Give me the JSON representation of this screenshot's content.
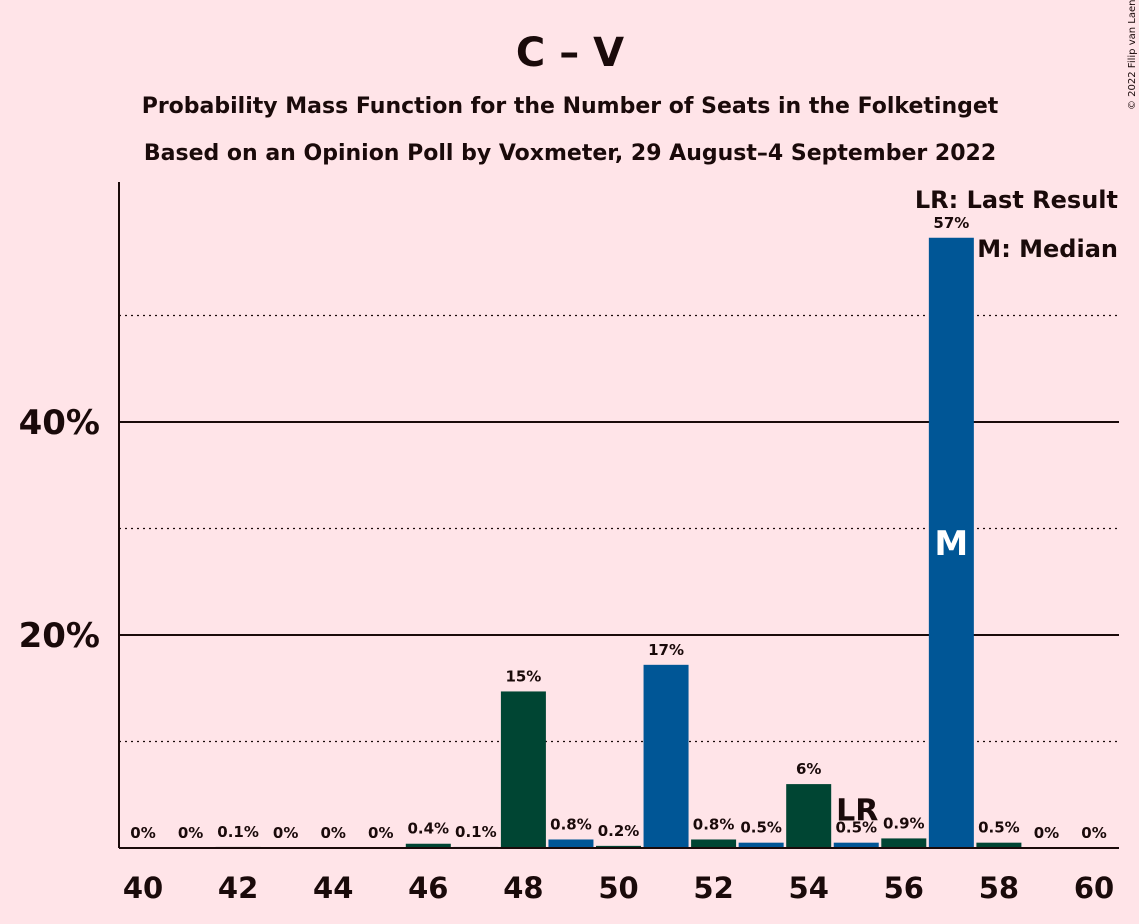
{
  "chart_data": {
    "type": "bar",
    "title": "C – V",
    "subtitle_1": "Probability Mass Function for the Number of Seats in the Folketinget",
    "subtitle_2": "Based on an Opinion Poll by Voxmeter, 29 August–4 September 2022",
    "copyright": "© 2022 Filip van Laenen",
    "x": [
      40,
      41,
      42,
      43,
      44,
      45,
      46,
      47,
      48,
      49,
      50,
      51,
      52,
      53,
      54,
      55,
      56,
      57,
      58,
      59,
      60
    ],
    "values": [
      0,
      0,
      0.1,
      0,
      0,
      0,
      0.4,
      0.1,
      14.7,
      0.8,
      0.2,
      17.2,
      0.8,
      0.5,
      6.0,
      0.5,
      0.9,
      57.3,
      0.5,
      0,
      0
    ],
    "value_labels": [
      "0%",
      "0%",
      "0.1%",
      "0%",
      "0%",
      "0%",
      "0.4%",
      "0.1%",
      "15%",
      "0.8%",
      "0.2%",
      "17%",
      "0.8%",
      "0.5%",
      "6%",
      "0.5%",
      "0.9%",
      "57%",
      "0.5%",
      "0%",
      "0%"
    ],
    "x_tick_labels": [
      "40",
      "42",
      "44",
      "46",
      "48",
      "50",
      "52",
      "54",
      "56",
      "58",
      "60"
    ],
    "x_tick_values": [
      40,
      42,
      44,
      46,
      48,
      50,
      52,
      54,
      56,
      58,
      60
    ],
    "y_tick_labels": [
      "20%",
      "40%"
    ],
    "y_tick_values": [
      20,
      40
    ],
    "y_dotted_values": [
      10,
      30,
      50
    ],
    "ylim": [
      0,
      62
    ],
    "grid": true,
    "last_result": 55,
    "last_result_label": "LR",
    "median": 57,
    "median_label": "M",
    "legend": {
      "position": "top-right",
      "lr_key": "LR",
      "lr_text": ": Last Result",
      "m_key": "M",
      "m_text": ": Median"
    },
    "colors": {
      "background": "#FFE4E8",
      "bar_dark_green": "#004533",
      "bar_blue": "#005696",
      "text": "#1a0a0a"
    }
  }
}
